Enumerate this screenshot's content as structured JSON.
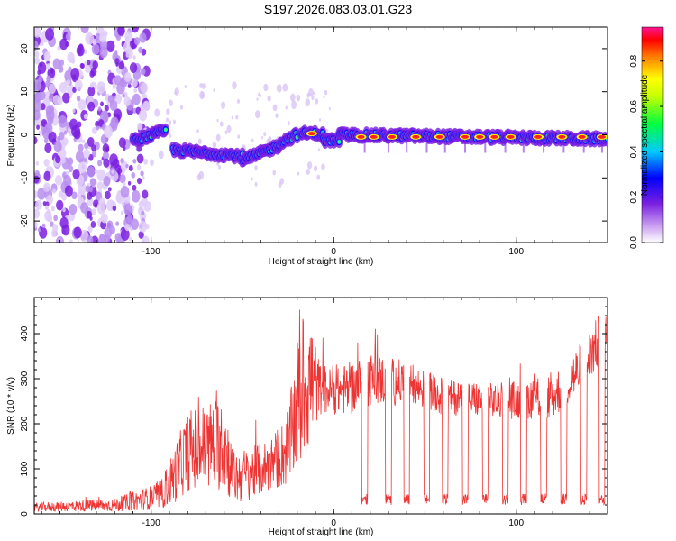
{
  "figure_title": "S197.2026.083.03.01.G23",
  "chart_data": [
    {
      "type": "heatmap",
      "title": "S197.2026.083.03.01.G23",
      "xlabel": "Height of straight line (km)",
      "ylabel": "Frequency (Hz)",
      "xlim": [
        -164,
        150
      ],
      "ylim": [
        -25,
        25
      ],
      "x_ticks": [
        -100,
        0,
        100
      ],
      "y_ticks": [
        -20,
        -10,
        0,
        10,
        20
      ],
      "colorbar": {
        "label": "Normalized spectral amplitude",
        "range": [
          0,
          0.95
        ],
        "ticks": [
          0.0,
          0.2,
          0.4,
          0.6,
          0.8
        ],
        "colormap": [
          "#ffffff",
          "#8a2be2",
          "#0000ff",
          "#00e0ff",
          "#00ff00",
          "#ffff00",
          "#ff8000",
          "#ff0000",
          "#ff1493"
        ]
      },
      "ridge": {
        "segments": [
          {
            "x0": -110,
            "x1": -92,
            "freq0": -1.5,
            "freq1": 1.0
          },
          {
            "x0": -88,
            "x1": -50,
            "freq0": -3.5,
            "freq1": -5.0
          },
          {
            "x0": -50,
            "x1": -30,
            "freq0": -6.0,
            "freq1": -2.5
          },
          {
            "x0": -30,
            "x1": -20,
            "freq0": -2.0,
            "freq1": 0.0
          },
          {
            "x0": -18,
            "x1": -6,
            "freq0": 0.3,
            "freq1": 0.3
          },
          {
            "x0": -6,
            "x1": 3,
            "freq0": -1.3,
            "freq1": -1.3
          },
          {
            "x0": 3,
            "x1": 150,
            "freq0": 0.0,
            "freq1": -1.0
          }
        ],
        "hot_spots_x": [
          -12,
          15,
          22,
          32,
          45,
          58,
          72,
          80,
          88,
          97,
          112,
          125,
          136,
          147
        ]
      }
    },
    {
      "type": "line",
      "xlabel": "Height of straight line (km)",
      "ylabel": "SNR (10 * v/v)",
      "xlim": [
        -164,
        150
      ],
      "ylim": [
        0,
        480
      ],
      "x_ticks": [
        -100,
        0,
        100
      ],
      "y_ticks": [
        0,
        100,
        200,
        300,
        400
      ],
      "series": [
        {
          "name": "SNR",
          "color": "#ee3333",
          "envelope": [
            {
              "x": -164,
              "base": 15,
              "amp": 10
            },
            {
              "x": -120,
              "base": 20,
              "amp": 15
            },
            {
              "x": -95,
              "base": 40,
              "amp": 30
            },
            {
              "x": -88,
              "base": 80,
              "amp": 60
            },
            {
              "x": -80,
              "base": 140,
              "amp": 90
            },
            {
              "x": -70,
              "base": 150,
              "amp": 100
            },
            {
              "x": -60,
              "base": 160,
              "amp": 110
            },
            {
              "x": -55,
              "base": 80,
              "amp": 60
            },
            {
              "x": -45,
              "base": 90,
              "amp": 60
            },
            {
              "x": -35,
              "base": 110,
              "amp": 60
            },
            {
              "x": -25,
              "base": 140,
              "amp": 80
            },
            {
              "x": -20,
              "base": 240,
              "amp": 150
            },
            {
              "x": -14,
              "base": 300,
              "amp": 180
            },
            {
              "x": -8,
              "base": 280,
              "amp": 60
            },
            {
              "x": 0,
              "base": 270,
              "amp": 50
            },
            {
              "x": 10,
              "base": 280,
              "amp": 60
            },
            {
              "x": 20,
              "base": 300,
              "amp": 60
            },
            {
              "x": 40,
              "base": 290,
              "amp": 50
            },
            {
              "x": 60,
              "base": 260,
              "amp": 40
            },
            {
              "x": 90,
              "base": 250,
              "amp": 40
            },
            {
              "x": 120,
              "base": 260,
              "amp": 50
            },
            {
              "x": 135,
              "base": 320,
              "amp": 60
            },
            {
              "x": 145,
              "base": 380,
              "amp": 60
            },
            {
              "x": 150,
              "base": 400,
              "amp": 40
            }
          ],
          "dips_x": [
            17,
            30,
            40,
            51,
            61,
            72,
            83,
            94,
            104,
            115,
            126,
            137,
            147
          ]
        }
      ]
    }
  ]
}
